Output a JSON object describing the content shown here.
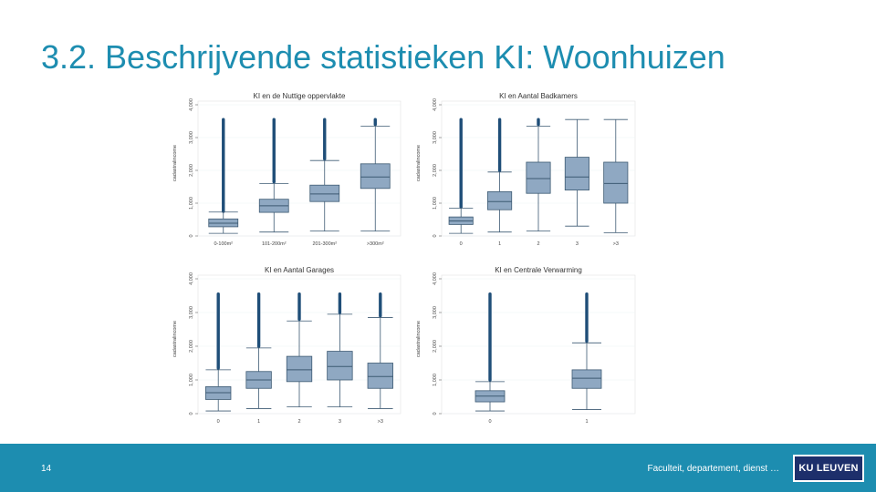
{
  "title": "3.2. Beschrijvende statistieken KI: Woonhuizen",
  "footer": {
    "page_number": "14",
    "text": "Faculteit, departement, dienst …",
    "logo": "KU LEUVEN"
  },
  "colors": {
    "accent": "#1d8db0",
    "box_fill": "#8fa8c2",
    "box_stroke": "#3d5a73",
    "outlier": "#1f4e78"
  },
  "chart_data": [
    {
      "type": "box",
      "title": "KI en de Nuttige oppervlakte",
      "ylabel": "cadastralincome",
      "ylim": [
        0,
        4000
      ],
      "yticks": [
        "0",
        "1,000",
        "2,000",
        "3,000",
        "4,000"
      ],
      "categories": [
        "0-100m²",
        "101-200m²",
        "201-300m²",
        ">300m²"
      ],
      "boxes": [
        {
          "whisker_low": 80,
          "q1": 280,
          "median": 390,
          "q3": 520,
          "whisker_high": 730,
          "outliers_from": 750,
          "outliers_to": 3550
        },
        {
          "whisker_low": 120,
          "q1": 720,
          "median": 920,
          "q3": 1120,
          "whisker_high": 1600,
          "outliers_from": 1650,
          "outliers_to": 3550
        },
        {
          "whisker_low": 150,
          "q1": 1050,
          "median": 1280,
          "q3": 1550,
          "whisker_high": 2300,
          "outliers_from": 2350,
          "outliers_to": 3550
        },
        {
          "whisker_low": 150,
          "q1": 1450,
          "median": 1800,
          "q3": 2200,
          "whisker_high": 3350,
          "outliers_from": 3400,
          "outliers_to": 3550
        }
      ]
    },
    {
      "type": "box",
      "title": "KI en Aantal Badkamers",
      "ylabel": "cadastralincome",
      "ylim": [
        0,
        4000
      ],
      "yticks": [
        "0",
        "1,000",
        "2,000",
        "3,000",
        "4,000"
      ],
      "categories": [
        "0",
        "1",
        "2",
        "3",
        ">3"
      ],
      "boxes": [
        {
          "whisker_low": 80,
          "q1": 350,
          "median": 460,
          "q3": 580,
          "whisker_high": 850,
          "outliers_from": 880,
          "outliers_to": 3550
        },
        {
          "whisker_low": 120,
          "q1": 800,
          "median": 1050,
          "q3": 1350,
          "whisker_high": 1950,
          "outliers_from": 2000,
          "outliers_to": 3550
        },
        {
          "whisker_low": 150,
          "q1": 1300,
          "median": 1750,
          "q3": 2250,
          "whisker_high": 3350,
          "outliers_from": 3400,
          "outliers_to": 3550
        },
        {
          "whisker_low": 300,
          "q1": 1400,
          "median": 1800,
          "q3": 2400,
          "whisker_high": 3550,
          "outliers_from": null,
          "outliers_to": null
        },
        {
          "whisker_low": 100,
          "q1": 1000,
          "median": 1600,
          "q3": 2250,
          "whisker_high": 3550,
          "outliers_from": null,
          "outliers_to": null
        }
      ]
    },
    {
      "type": "box",
      "title": "KI en Aantal Garages",
      "ylabel": "cadastralincome",
      "ylim": [
        0,
        4000
      ],
      "yticks": [
        "0",
        "1,000",
        "2,000",
        "3,000",
        "4,000"
      ],
      "categories": [
        "0",
        "1",
        "2",
        "3",
        ">3"
      ],
      "boxes": [
        {
          "whisker_low": 80,
          "q1": 420,
          "median": 620,
          "q3": 800,
          "whisker_high": 1300,
          "outliers_from": 1350,
          "outliers_to": 3550
        },
        {
          "whisker_low": 150,
          "q1": 750,
          "median": 1000,
          "q3": 1250,
          "whisker_high": 1950,
          "outliers_from": 2000,
          "outliers_to": 3550
        },
        {
          "whisker_low": 200,
          "q1": 950,
          "median": 1300,
          "q3": 1700,
          "whisker_high": 2750,
          "outliers_from": 2800,
          "outliers_to": 3550
        },
        {
          "whisker_low": 200,
          "q1": 1000,
          "median": 1400,
          "q3": 1850,
          "whisker_high": 2950,
          "outliers_from": 3000,
          "outliers_to": 3550
        },
        {
          "whisker_low": 150,
          "q1": 750,
          "median": 1100,
          "q3": 1500,
          "whisker_high": 2850,
          "outliers_from": 2900,
          "outliers_to": 3550
        }
      ]
    },
    {
      "type": "box",
      "title": "KI en Centrale Verwarming",
      "ylabel": "cadastralincome",
      "ylim": [
        0,
        4000
      ],
      "yticks": [
        "0",
        "1,000",
        "2,000",
        "3,000",
        "4,000"
      ],
      "categories": [
        "0",
        "1"
      ],
      "boxes": [
        {
          "whisker_low": 80,
          "q1": 350,
          "median": 520,
          "q3": 680,
          "whisker_high": 950,
          "outliers_from": 1000,
          "outliers_to": 3550
        },
        {
          "whisker_low": 120,
          "q1": 750,
          "median": 1050,
          "q3": 1300,
          "whisker_high": 2100,
          "outliers_from": 2150,
          "outliers_to": 3550
        }
      ]
    }
  ]
}
